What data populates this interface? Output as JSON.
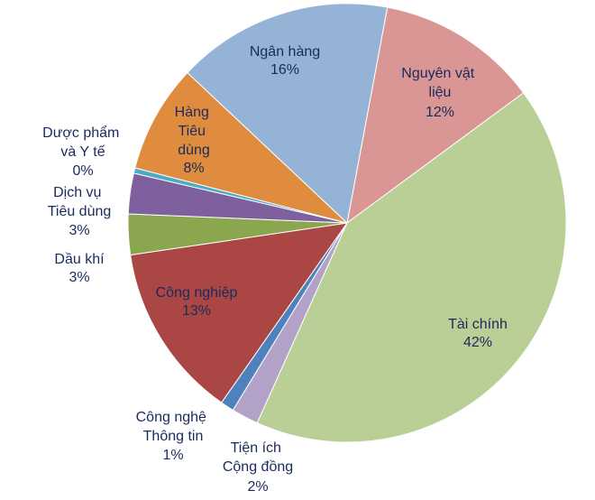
{
  "chart_data": {
    "type": "pie",
    "categories": [
      "Nguyên vật liệu",
      "Tài chính",
      "Tiện ích Cộng đồng",
      "Công nghệ Thông tin",
      "Công nghiệp",
      "Dầu khí",
      "Dịch vụ Tiêu dùng",
      "Dược phẩm và Y tế",
      "Hàng Tiêu dùng",
      "Ngân hàng"
    ],
    "values": [
      12,
      42,
      2,
      1,
      13,
      3,
      3,
      0.4,
      8,
      16
    ],
    "value_labels": [
      "12%",
      "42%",
      "2%",
      "1%",
      "13%",
      "3%",
      "3%",
      "0%",
      "8%",
      "16%"
    ],
    "colors": [
      "#d99694",
      "#b9cf96",
      "#b3a2c7",
      "#4f81bd",
      "#aa4643",
      "#8aa64f",
      "#7f609e",
      "#4bacc6",
      "#e08c3e",
      "#95b3d7"
    ]
  }
}
